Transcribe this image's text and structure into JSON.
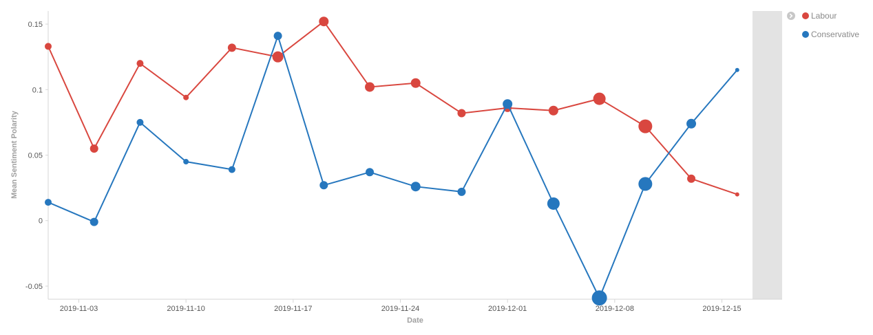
{
  "chart_data": {
    "type": "line",
    "title": "",
    "xlabel": "Date",
    "ylabel": "Mean Sentiment Polarity",
    "x": [
      "2019-11-01",
      "2019-11-04",
      "2019-11-07",
      "2019-11-10",
      "2019-11-13",
      "2019-11-16",
      "2019-11-19",
      "2019-11-22",
      "2019-11-25",
      "2019-11-28",
      "2019-12-01",
      "2019-12-04",
      "2019-12-07",
      "2019-12-10",
      "2019-12-13",
      "2019-12-16"
    ],
    "x_ticks": [
      "2019-11-03",
      "2019-11-10",
      "2019-11-17",
      "2019-11-24",
      "2019-12-01",
      "2019-12-08",
      "2019-12-15"
    ],
    "y_ticks": [
      "0.15",
      "0.1",
      "0.05",
      "0",
      "-0.05"
    ],
    "xlim": [
      "2019-11-01",
      "2019-12-17"
    ],
    "ylim": [
      -0.06,
      0.16
    ],
    "grid": false,
    "legend_position": "top-right",
    "series": [
      {
        "name": "Labour",
        "color": "#d9473f",
        "values": [
          0.133,
          0.055,
          0.12,
          0.094,
          0.132,
          0.125,
          0.152,
          0.102,
          0.105,
          0.082,
          0.086,
          0.084,
          0.093,
          0.072,
          0.032,
          0.02
        ],
        "marker_sizes": [
          5,
          6,
          5,
          4,
          6,
          8,
          7,
          7,
          7,
          6,
          6,
          7,
          9,
          10,
          6,
          3
        ]
      },
      {
        "name": "Conservative",
        "color": "#2677be",
        "values": [
          0.014,
          -0.001,
          0.075,
          0.045,
          0.039,
          0.141,
          0.027,
          0.037,
          0.026,
          0.022,
          0.089,
          0.013,
          -0.059,
          0.028,
          0.074,
          0.115
        ],
        "marker_sizes": [
          5,
          6,
          5,
          4,
          5,
          6,
          6,
          6,
          7,
          6,
          7,
          9,
          11,
          10,
          7,
          3
        ]
      }
    ]
  }
}
